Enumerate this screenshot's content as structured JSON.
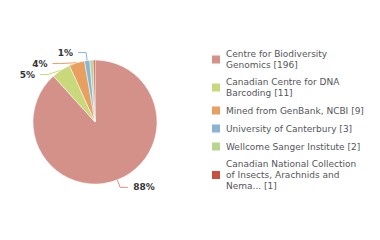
{
  "chart_data": {
    "type": "pie",
    "categories": [
      "Centre for Biodiversity\nGenomics [196]",
      "Canadian Centre for DNA\nBarcoding [11]",
      "Mined from GenBank, NCBI [9]",
      "University of Canterbury [3]",
      "Wellcome Sanger Institute [2]",
      "Canadian National Collection\nof Insects, Arachnids and\nNema... [1]"
    ],
    "values": [
      88.28828828828829,
      4.954954954954955,
      4.054054054054054,
      1.3513513513513513,
      0.9009009009009009,
      0.45045045045045046
    ],
    "value_labels": [
      "88%",
      "5%",
      "4%",
      "1%",
      null,
      null
    ],
    "data_labels": true,
    "colors": [
      "#d4918a",
      "#c8d87a",
      "#e8a060",
      "#8ab4d4",
      "#b8d490",
      "#c85040"
    ],
    "legend": "right"
  }
}
